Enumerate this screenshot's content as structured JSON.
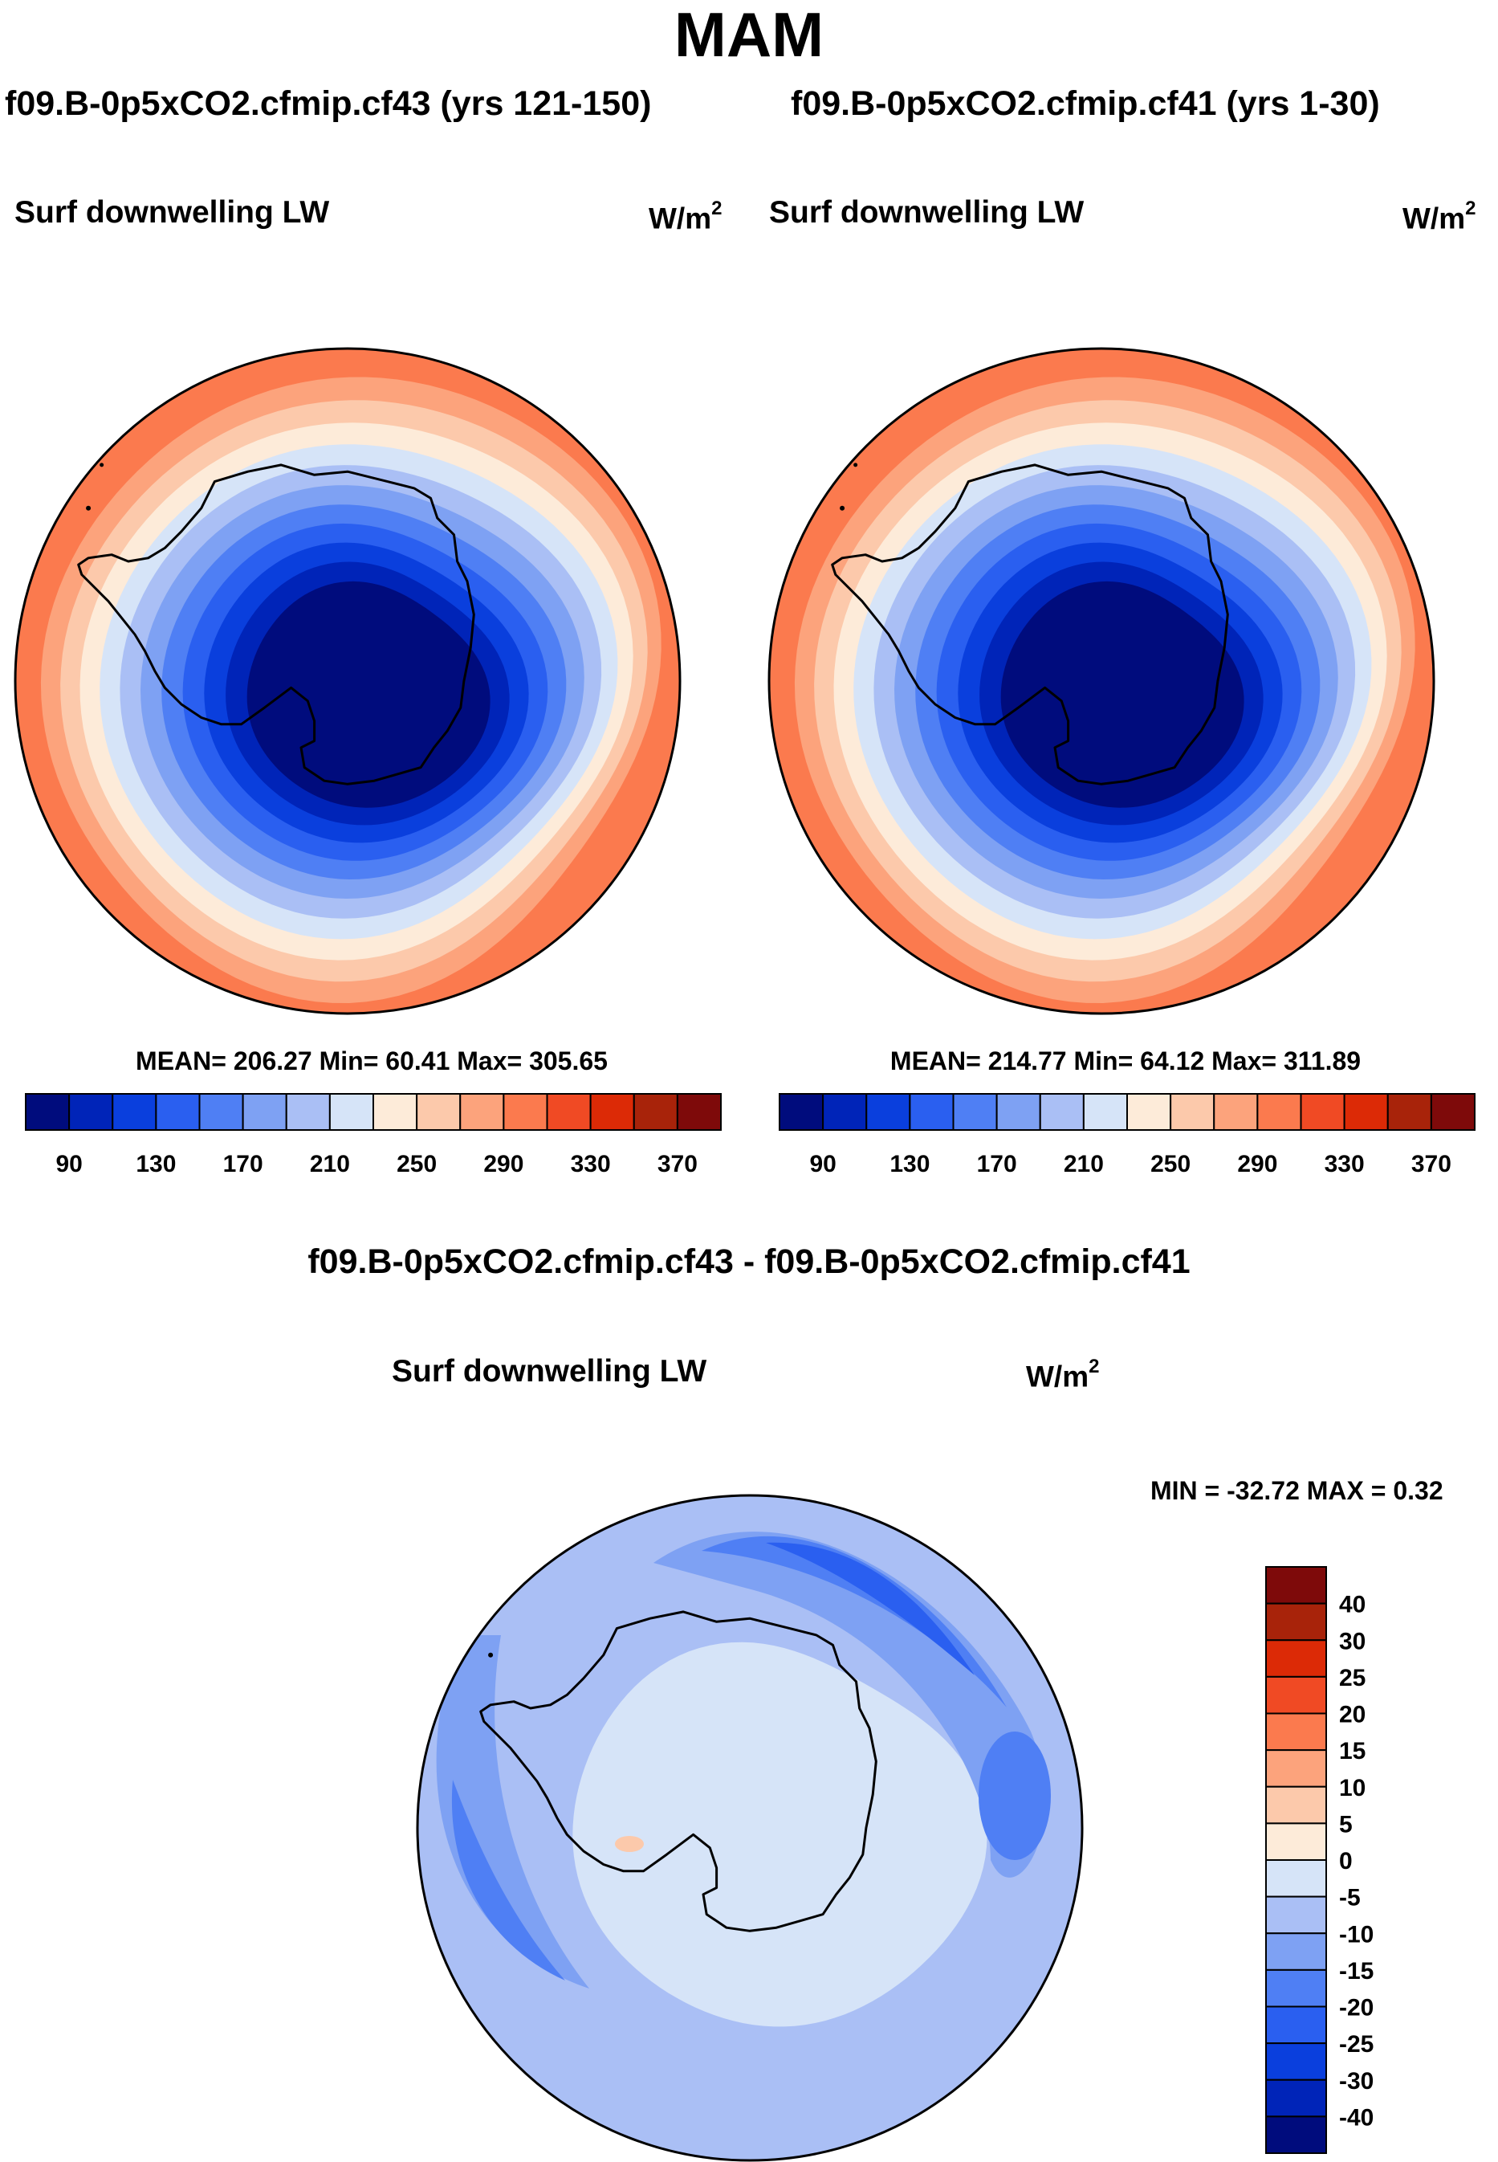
{
  "page": {
    "season": "MAM",
    "diff_title": "f09.B-0p5xCO2.cfmip.cf43 - f09.B-0p5xCO2.cfmip.cf41"
  },
  "units_text": {
    "base": "W/m",
    "sup": "2"
  },
  "chart_data": [
    {
      "type": "contour-map",
      "projection": "south-polar-stereographic",
      "case_title": "f09.B-0p5xCO2.cfmip.cf43 (yrs 121-150)",
      "variable": "Surf downwelling LW",
      "units": "W/m2",
      "stats_text": "MEAN= 206.27  Min=  60.41  Max= 305.65",
      "stats": {
        "mean": 206.27,
        "min": 60.41,
        "max": 305.65
      },
      "levels": [
        80,
        90,
        110,
        130,
        150,
        170,
        190,
        210,
        230,
        250,
        270,
        290,
        310,
        330,
        350,
        370
      ],
      "contour_values_by_ring": [
        80,
        110,
        130,
        150,
        170,
        190,
        210,
        230,
        250,
        270,
        290,
        310
      ]
    },
    {
      "type": "contour-map",
      "projection": "south-polar-stereographic",
      "case_title": "f09.B-0p5xCO2.cfmip.cf41 (yrs 1-30)",
      "variable": "Surf downwelling LW",
      "units": "W/m2",
      "stats_text": "MEAN= 214.77  Min=  64.12  Max= 311.89",
      "stats": {
        "mean": 214.77,
        "min": 64.12,
        "max": 311.89
      },
      "levels": [
        80,
        90,
        110,
        130,
        150,
        170,
        190,
        210,
        230,
        250,
        270,
        290,
        310,
        330,
        350,
        370
      ],
      "contour_values_by_ring": [
        80,
        110,
        130,
        150,
        170,
        190,
        210,
        230,
        250,
        270,
        290,
        310
      ]
    },
    {
      "type": "contour-map-difference",
      "projection": "south-polar-stereographic",
      "variable": "Surf downwelling LW",
      "units": "W/m2",
      "stats_text": "MIN = -32.72 MAX =   0.32",
      "stats": {
        "min": -32.72,
        "max": 0.32
      },
      "levels": [
        -40,
        -30,
        -25,
        -20,
        -15,
        -10,
        -5,
        0,
        5,
        10,
        15,
        20,
        25,
        30,
        40
      ]
    }
  ],
  "colorbar_main": {
    "labels": [
      "90",
      "130",
      "170",
      "210",
      "250",
      "290",
      "330",
      "370"
    ],
    "colors": [
      "#000c7d",
      "#0024b8",
      "#0a3fdd",
      "#2a5ff0",
      "#4f7ff4",
      "#7ea1f3",
      "#aabff5",
      "#d6e4f8",
      "#fdebd9",
      "#fcc9ab",
      "#fca37c",
      "#fb7a4e",
      "#f04a24",
      "#dc2a06",
      "#a8230a",
      "#7e0a0a"
    ]
  },
  "colorbar_diff": {
    "labels": [
      "40",
      "30",
      "25",
      "20",
      "15",
      "10",
      "5",
      "0",
      "-5",
      "-10",
      "-15",
      "-20",
      "-25",
      "-30",
      "-40"
    ],
    "colors_top_to_bottom": [
      "#7e0a0a",
      "#a8230a",
      "#dc2a06",
      "#f04a24",
      "#fb7a4e",
      "#fca37c",
      "#fcc9ab",
      "#fdebd9",
      "#d6e4f8",
      "#aabff5",
      "#7ea1f3",
      "#4f7ff4",
      "#2a5ff0",
      "#0a3fdd",
      "#0024b8",
      "#000c7d"
    ]
  },
  "map_palette": {
    "ring_colors": [
      "#000c7d",
      "#0024b8",
      "#0a3fdd",
      "#2a5ff0",
      "#4f7ff4",
      "#7ea1f3",
      "#aabff5",
      "#d6e4f8",
      "#fdebd9",
      "#fcc9ab",
      "#fca37c",
      "#fb7a4e"
    ],
    "diff_background": "#aabff5",
    "diff_inner": "#d6e4f8",
    "diff_bands": [
      "#7ea1f3",
      "#4f7ff4",
      "#2a5ff0",
      "#0a3fdd"
    ],
    "diff_warm": "#fcc9ab",
    "coast": "#000000"
  }
}
